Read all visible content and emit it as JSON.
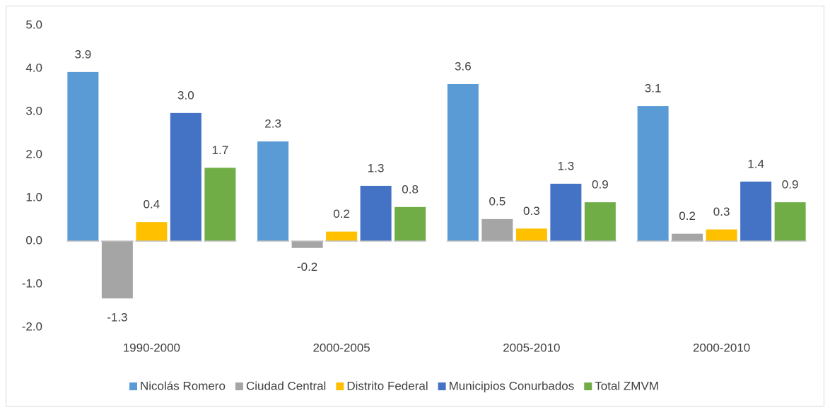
{
  "chart_data": {
    "type": "bar",
    "categories": [
      "1990-2000",
      "2000-2005",
      "2005-2010",
      "2000-2010"
    ],
    "series": [
      {
        "name": "Nicolás Romero",
        "color": "#5b9bd5",
        "values": [
          3.92,
          2.31,
          3.64,
          3.13
        ],
        "value_labels": [
          "3.9",
          "2.3",
          "3.6",
          "3.1"
        ]
      },
      {
        "name": "Ciudad Central",
        "color": "#a5a5a5",
        "values": [
          -1.33,
          -0.16,
          0.51,
          0.17
        ],
        "value_labels": [
          "-1.3",
          "-0.2",
          "0.5",
          "0.2"
        ]
      },
      {
        "name": "Distrito Federal",
        "color": "#ffc000",
        "values": [
          0.44,
          0.22,
          0.29,
          0.27
        ],
        "value_labels": [
          "0.4",
          "0.2",
          "0.3",
          "0.3"
        ]
      },
      {
        "name": "Municipios Conurbados",
        "color": "#4472c4",
        "values": [
          2.97,
          1.28,
          1.33,
          1.38
        ],
        "value_labels": [
          "3.0",
          "1.3",
          "1.3",
          "1.4"
        ]
      },
      {
        "name": "Total ZMVM",
        "color": "#70ad47",
        "values": [
          1.7,
          0.79,
          0.9,
          0.9
        ],
        "value_labels": [
          "1.7",
          "0.8",
          "0.9",
          "0.9"
        ]
      }
    ],
    "ylim": [
      -2,
      5
    ],
    "yticks": [
      {
        "value": -2,
        "label": "-2.0"
      },
      {
        "value": -1,
        "label": "-1.0"
      },
      {
        "value": 0,
        "label": "0.0"
      },
      {
        "value": 1,
        "label": "1.0"
      },
      {
        "value": 2,
        "label": "2.0"
      },
      {
        "value": 3,
        "label": "3.0"
      },
      {
        "value": 4,
        "label": "4.0"
      },
      {
        "value": 5,
        "label": "5.0"
      }
    ],
    "grid": false,
    "legend": "bottom"
  }
}
